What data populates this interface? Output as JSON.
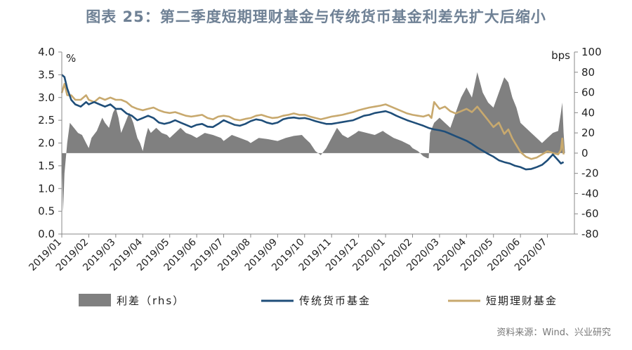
{
  "title": "图表 25：第二季度短期理财基金与传统货币基金利差先扩大后缩小",
  "source": "资料来源：Wind、兴业研究",
  "chart_data": {
    "type": "line",
    "left_axis": {
      "unit": "%",
      "ylim": [
        0.0,
        4.0
      ],
      "ticks": [
        "0.0",
        "0.5",
        "1.0",
        "1.5",
        "2.0",
        "2.5",
        "3.0",
        "3.5",
        "4.0"
      ]
    },
    "right_axis": {
      "unit": "bps",
      "ylim": [
        -80,
        100
      ],
      "ticks": [
        "-80",
        "-60",
        "-40",
        "-20",
        "0",
        "20",
        "40",
        "60",
        "80",
        "100"
      ]
    },
    "x_labels": [
      "2019/01",
      "2019/02",
      "2019/03",
      "2019/04",
      "2019/05",
      "2019/06",
      "2019/07",
      "2019/08",
      "2019/09",
      "2019/10",
      "2019/11",
      "2019/12",
      "2020/01",
      "2020/02",
      "2020/03",
      "2020/04",
      "2020/05",
      "2020/06",
      "2020/07"
    ],
    "colors": {
      "spread": "#808080",
      "money_fund": "#1f4e79",
      "short_term": "#c8a96e"
    },
    "series": [
      {
        "name": "利差（rhs）",
        "type": "area",
        "axis": "right",
        "points": [
          [
            0,
            -5
          ],
          [
            0.05,
            -58
          ],
          [
            0.1,
            -20
          ],
          [
            0.2,
            10
          ],
          [
            0.3,
            30
          ],
          [
            0.45,
            25
          ],
          [
            0.6,
            20
          ],
          [
            0.75,
            18
          ],
          [
            0.9,
            10
          ],
          [
            1.0,
            5
          ],
          [
            1.1,
            15
          ],
          [
            1.3,
            22
          ],
          [
            1.5,
            35
          ],
          [
            1.6,
            30
          ],
          [
            1.75,
            25
          ],
          [
            1.9,
            40
          ],
          [
            2.0,
            45
          ],
          [
            2.1,
            35
          ],
          [
            2.2,
            20
          ],
          [
            2.35,
            30
          ],
          [
            2.5,
            40
          ],
          [
            2.65,
            30
          ],
          [
            2.8,
            15
          ],
          [
            2.9,
            10
          ],
          [
            3.0,
            2
          ],
          [
            3.1,
            15
          ],
          [
            3.2,
            25
          ],
          [
            3.3,
            20
          ],
          [
            3.5,
            25
          ],
          [
            3.7,
            20
          ],
          [
            3.9,
            18
          ],
          [
            4.0,
            15
          ],
          [
            4.2,
            20
          ],
          [
            4.4,
            25
          ],
          [
            4.6,
            20
          ],
          [
            4.8,
            18
          ],
          [
            5.0,
            15
          ],
          [
            5.3,
            20
          ],
          [
            5.6,
            18
          ],
          [
            5.9,
            15
          ],
          [
            6.0,
            12
          ],
          [
            6.3,
            18
          ],
          [
            6.6,
            15
          ],
          [
            6.9,
            12
          ],
          [
            7.0,
            10
          ],
          [
            7.3,
            15
          ],
          [
            7.6,
            14
          ],
          [
            8.0,
            12
          ],
          [
            8.3,
            15
          ],
          [
            8.6,
            17
          ],
          [
            8.9,
            18
          ],
          [
            9.0,
            15
          ],
          [
            9.2,
            10
          ],
          [
            9.4,
            2
          ],
          [
            9.6,
            -2
          ],
          [
            9.8,
            5
          ],
          [
            10.0,
            15
          ],
          [
            10.2,
            25
          ],
          [
            10.4,
            18
          ],
          [
            10.6,
            15
          ],
          [
            10.9,
            20
          ],
          [
            11.0,
            22
          ],
          [
            11.3,
            20
          ],
          [
            11.6,
            18
          ],
          [
            11.9,
            22
          ],
          [
            12.0,
            20
          ],
          [
            12.3,
            15
          ],
          [
            12.6,
            12
          ],
          [
            12.9,
            8
          ],
          [
            13.0,
            5
          ],
          [
            13.2,
            2
          ],
          [
            13.4,
            -3
          ],
          [
            13.55,
            -5
          ],
          [
            13.6,
            -5
          ],
          [
            13.65,
            20
          ],
          [
            13.8,
            30
          ],
          [
            14.0,
            35
          ],
          [
            14.2,
            30
          ],
          [
            14.4,
            25
          ],
          [
            14.6,
            40
          ],
          [
            14.8,
            55
          ],
          [
            15.0,
            65
          ],
          [
            15.2,
            55
          ],
          [
            15.4,
            80
          ],
          [
            15.6,
            60
          ],
          [
            15.8,
            50
          ],
          [
            16.0,
            45
          ],
          [
            16.2,
            60
          ],
          [
            16.4,
            75
          ],
          [
            16.55,
            70
          ],
          [
            16.7,
            55
          ],
          [
            16.85,
            45
          ],
          [
            17.0,
            30
          ],
          [
            17.2,
            25
          ],
          [
            17.4,
            20
          ],
          [
            17.6,
            15
          ],
          [
            17.8,
            10
          ],
          [
            18.0,
            15
          ],
          [
            18.2,
            20
          ],
          [
            18.4,
            22
          ],
          [
            18.5,
            40
          ],
          [
            18.55,
            50
          ],
          [
            18.6,
            20
          ],
          [
            18.65,
            0
          ]
        ]
      },
      {
        "name": "传统货币基金",
        "type": "line",
        "axis": "left",
        "points": [
          [
            0,
            3.5
          ],
          [
            0.1,
            3.45
          ],
          [
            0.2,
            3.2
          ],
          [
            0.35,
            2.95
          ],
          [
            0.5,
            2.85
          ],
          [
            0.7,
            2.8
          ],
          [
            0.9,
            2.9
          ],
          [
            1.0,
            2.85
          ],
          [
            1.2,
            2.9
          ],
          [
            1.4,
            2.85
          ],
          [
            1.6,
            2.8
          ],
          [
            1.8,
            2.85
          ],
          [
            2.0,
            2.75
          ],
          [
            2.2,
            2.75
          ],
          [
            2.4,
            2.65
          ],
          [
            2.6,
            2.6
          ],
          [
            2.8,
            2.5
          ],
          [
            3.0,
            2.55
          ],
          [
            3.2,
            2.6
          ],
          [
            3.4,
            2.55
          ],
          [
            3.6,
            2.45
          ],
          [
            3.8,
            2.42
          ],
          [
            4.0,
            2.45
          ],
          [
            4.2,
            2.5
          ],
          [
            4.4,
            2.45
          ],
          [
            4.6,
            2.4
          ],
          [
            4.8,
            2.35
          ],
          [
            5.0,
            2.4
          ],
          [
            5.2,
            2.42
          ],
          [
            5.4,
            2.36
          ],
          [
            5.6,
            2.35
          ],
          [
            5.8,
            2.42
          ],
          [
            6.0,
            2.5
          ],
          [
            6.2,
            2.45
          ],
          [
            6.4,
            2.4
          ],
          [
            6.6,
            2.38
          ],
          [
            6.8,
            2.42
          ],
          [
            7.0,
            2.48
          ],
          [
            7.2,
            2.52
          ],
          [
            7.4,
            2.5
          ],
          [
            7.6,
            2.45
          ],
          [
            7.8,
            2.42
          ],
          [
            8.0,
            2.45
          ],
          [
            8.2,
            2.52
          ],
          [
            8.4,
            2.55
          ],
          [
            8.6,
            2.56
          ],
          [
            8.8,
            2.54
          ],
          [
            9.0,
            2.55
          ],
          [
            9.2,
            2.52
          ],
          [
            9.4,
            2.48
          ],
          [
            9.6,
            2.45
          ],
          [
            9.8,
            2.42
          ],
          [
            10.0,
            2.42
          ],
          [
            10.2,
            2.44
          ],
          [
            10.4,
            2.46
          ],
          [
            10.6,
            2.48
          ],
          [
            10.8,
            2.5
          ],
          [
            11.0,
            2.55
          ],
          [
            11.2,
            2.6
          ],
          [
            11.4,
            2.62
          ],
          [
            11.6,
            2.66
          ],
          [
            11.8,
            2.68
          ],
          [
            12.0,
            2.7
          ],
          [
            12.2,
            2.66
          ],
          [
            12.4,
            2.6
          ],
          [
            12.6,
            2.55
          ],
          [
            12.8,
            2.5
          ],
          [
            13.0,
            2.46
          ],
          [
            13.2,
            2.42
          ],
          [
            13.4,
            2.38
          ],
          [
            13.6,
            2.33
          ],
          [
            13.8,
            2.3
          ],
          [
            14.0,
            2.28
          ],
          [
            14.2,
            2.25
          ],
          [
            14.4,
            2.2
          ],
          [
            14.6,
            2.15
          ],
          [
            14.8,
            2.1
          ],
          [
            15.0,
            2.05
          ],
          [
            15.2,
            1.98
          ],
          [
            15.4,
            1.9
          ],
          [
            15.6,
            1.83
          ],
          [
            15.8,
            1.76
          ],
          [
            16.0,
            1.7
          ],
          [
            16.2,
            1.62
          ],
          [
            16.4,
            1.58
          ],
          [
            16.6,
            1.55
          ],
          [
            16.8,
            1.5
          ],
          [
            17.0,
            1.47
          ],
          [
            17.2,
            1.42
          ],
          [
            17.4,
            1.43
          ],
          [
            17.6,
            1.47
          ],
          [
            17.8,
            1.52
          ],
          [
            18.0,
            1.62
          ],
          [
            18.2,
            1.75
          ],
          [
            18.4,
            1.62
          ],
          [
            18.5,
            1.55
          ],
          [
            18.6,
            1.58
          ]
        ]
      },
      {
        "name": "短期理财基金",
        "type": "line",
        "axis": "left",
        "points": [
          [
            0,
            3.1
          ],
          [
            0.1,
            3.3
          ],
          [
            0.2,
            3.05
          ],
          [
            0.35,
            3.05
          ],
          [
            0.5,
            2.95
          ],
          [
            0.7,
            2.95
          ],
          [
            0.9,
            3.05
          ],
          [
            1.0,
            2.95
          ],
          [
            1.2,
            2.9
          ],
          [
            1.4,
            3.0
          ],
          [
            1.6,
            2.95
          ],
          [
            1.8,
            3.0
          ],
          [
            2.0,
            2.95
          ],
          [
            2.2,
            2.95
          ],
          [
            2.4,
            2.9
          ],
          [
            2.6,
            2.8
          ],
          [
            2.8,
            2.75
          ],
          [
            3.0,
            2.72
          ],
          [
            3.2,
            2.75
          ],
          [
            3.4,
            2.78
          ],
          [
            3.6,
            2.72
          ],
          [
            3.8,
            2.68
          ],
          [
            4.0,
            2.66
          ],
          [
            4.2,
            2.68
          ],
          [
            4.4,
            2.64
          ],
          [
            4.6,
            2.6
          ],
          [
            4.8,
            2.58
          ],
          [
            5.0,
            2.6
          ],
          [
            5.2,
            2.62
          ],
          [
            5.4,
            2.55
          ],
          [
            5.6,
            2.52
          ],
          [
            5.8,
            2.58
          ],
          [
            6.0,
            2.6
          ],
          [
            6.2,
            2.58
          ],
          [
            6.4,
            2.52
          ],
          [
            6.6,
            2.5
          ],
          [
            6.8,
            2.53
          ],
          [
            7.0,
            2.55
          ],
          [
            7.2,
            2.6
          ],
          [
            7.4,
            2.62
          ],
          [
            7.6,
            2.58
          ],
          [
            7.8,
            2.55
          ],
          [
            8.0,
            2.56
          ],
          [
            8.2,
            2.6
          ],
          [
            8.4,
            2.62
          ],
          [
            8.6,
            2.65
          ],
          [
            8.8,
            2.62
          ],
          [
            9.0,
            2.62
          ],
          [
            9.2,
            2.58
          ],
          [
            9.4,
            2.55
          ],
          [
            9.6,
            2.52
          ],
          [
            9.8,
            2.55
          ],
          [
            10.0,
            2.58
          ],
          [
            10.2,
            2.6
          ],
          [
            10.4,
            2.62
          ],
          [
            10.6,
            2.65
          ],
          [
            10.8,
            2.68
          ],
          [
            11.0,
            2.72
          ],
          [
            11.2,
            2.75
          ],
          [
            11.4,
            2.78
          ],
          [
            11.6,
            2.8
          ],
          [
            11.8,
            2.82
          ],
          [
            12.0,
            2.85
          ],
          [
            12.2,
            2.8
          ],
          [
            12.4,
            2.75
          ],
          [
            12.6,
            2.7
          ],
          [
            12.8,
            2.65
          ],
          [
            13.0,
            2.62
          ],
          [
            13.2,
            2.6
          ],
          [
            13.4,
            2.58
          ],
          [
            13.6,
            2.62
          ],
          [
            13.7,
            2.55
          ],
          [
            13.8,
            2.9
          ],
          [
            14.0,
            2.75
          ],
          [
            14.2,
            2.8
          ],
          [
            14.4,
            2.7
          ],
          [
            14.6,
            2.65
          ],
          [
            14.8,
            2.7
          ],
          [
            15.0,
            2.75
          ],
          [
            15.2,
            2.68
          ],
          [
            15.4,
            2.8
          ],
          [
            15.6,
            2.65
          ],
          [
            15.8,
            2.5
          ],
          [
            16.0,
            2.35
          ],
          [
            16.2,
            2.45
          ],
          [
            16.4,
            2.2
          ],
          [
            16.55,
            2.3
          ],
          [
            16.7,
            2.1
          ],
          [
            16.85,
            1.95
          ],
          [
            17.0,
            1.8
          ],
          [
            17.2,
            1.7
          ],
          [
            17.4,
            1.65
          ],
          [
            17.6,
            1.68
          ],
          [
            17.8,
            1.75
          ],
          [
            18.0,
            1.82
          ],
          [
            18.2,
            1.78
          ],
          [
            18.4,
            1.75
          ],
          [
            18.5,
            1.85
          ],
          [
            18.55,
            2.1
          ],
          [
            18.6,
            1.75
          ]
        ]
      }
    ],
    "legend": [
      "利差（rhs）",
      "传统货币基金",
      "短期理财基金"
    ]
  }
}
